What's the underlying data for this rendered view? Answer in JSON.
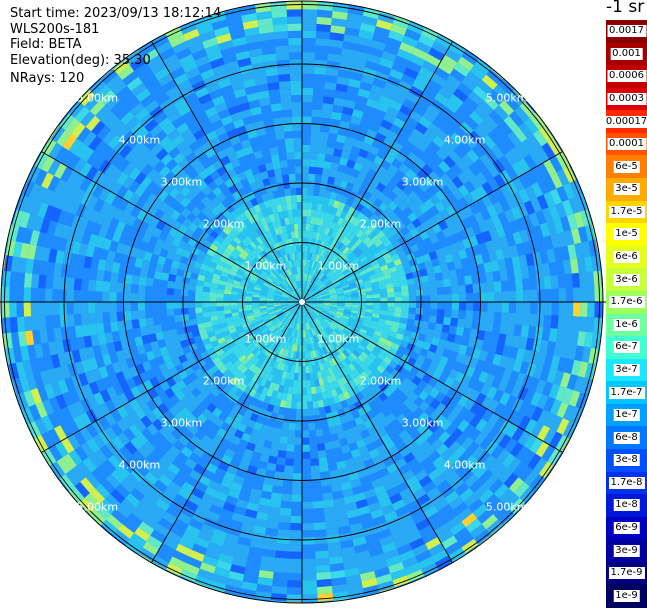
{
  "header": {
    "start_time": "Start time: 2023/09/13 18:12:14",
    "instrument": "WLS200s-181",
    "field": "Field: BETA",
    "elevation": "Elevation(deg): 35.30",
    "nrays": "NRays: 120"
  },
  "colorbar": {
    "unit": "-1 sr",
    "labels": [
      "0.0017",
      "0.001",
      "0.0006",
      "0.0003",
      "0.00017",
      "0.0001",
      "6e-5",
      "3e-5",
      "1.7e-5",
      "1e-5",
      "6e-6",
      "3e-6",
      "1.7e-6",
      "1e-6",
      "6e-7",
      "3e-7",
      "1.7e-7",
      "1e-7",
      "6e-8",
      "3e-8",
      "1.7e-8",
      "1e-8",
      "6e-9",
      "3e-9",
      "1.7e-9",
      "1e-9"
    ],
    "colors": [
      "#8a0000",
      "#a60000",
      "#c00000",
      "#dc0000",
      "#ff2a00",
      "#ff5500",
      "#ff8000",
      "#ffaa00",
      "#ffd400",
      "#ffff00",
      "#e6ff1a",
      "#c8ff3a",
      "#9cff60",
      "#6effa0",
      "#40ffd0",
      "#1ae6ff",
      "#00c8ff",
      "#00a0ff",
      "#0078ff",
      "#0050ff",
      "#0030f0",
      "#0018d8",
      "#0000c0",
      "#0000a0",
      "#000080",
      "#000060"
    ]
  },
  "ppi": {
    "ring_labels": [
      "1.00km",
      "2.00km",
      "3.00km",
      "4.00km",
      "5.00km"
    ],
    "field_colors": [
      "#0a3cff",
      "#1464ff",
      "#1e8cff",
      "#2aaaf5",
      "#28c3ee",
      "#3ad8e8",
      "#60e8c8",
      "#90f090",
      "#d0f050",
      "#ffd030",
      "#ff9020"
    ]
  }
}
